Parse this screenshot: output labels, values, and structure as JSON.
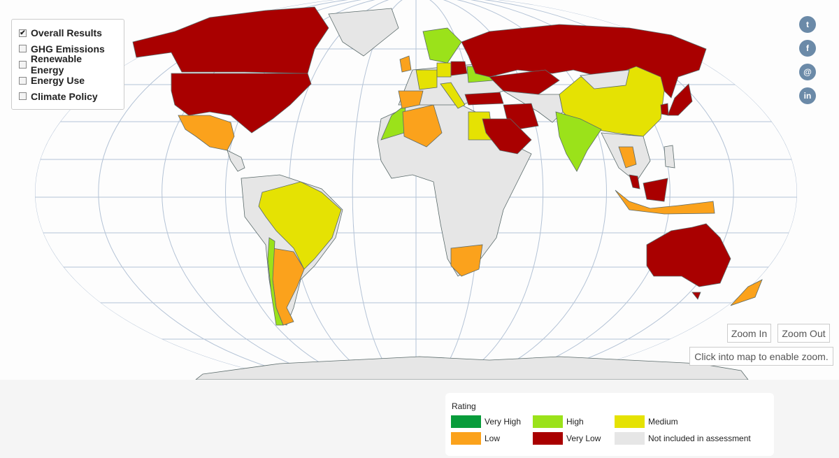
{
  "layers": [
    {
      "label": "Overall Results",
      "checked": true
    },
    {
      "label": "GHG Emissions",
      "checked": false
    },
    {
      "label": "Renewable Energy",
      "checked": false
    },
    {
      "label": "Energy Use",
      "checked": false
    },
    {
      "label": "Climate Policy",
      "checked": false
    }
  ],
  "zoom": {
    "in": "Zoom In",
    "out": "Zoom Out",
    "hint": "Click into map to enable zoom."
  },
  "legend": {
    "title": "Rating",
    "items": [
      {
        "label": "Very High",
        "color": "#089c3b"
      },
      {
        "label": "High",
        "color": "#9be21a"
      },
      {
        "label": "Medium",
        "color": "#e5e203"
      },
      {
        "label": "Low",
        "color": "#fba21c"
      },
      {
        "label": "Very Low",
        "color": "#a90000"
      },
      {
        "label": "Not included in assessment",
        "color": "#e6e6e6"
      }
    ]
  }
}
